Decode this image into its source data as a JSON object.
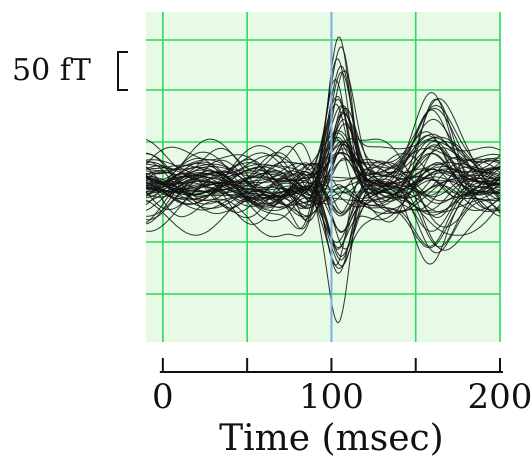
{
  "chart_data": {
    "type": "line",
    "title": "",
    "xlabel": "Time (msec)",
    "ylabel": "",
    "xlim": [
      -10,
      200
    ],
    "ylim": [
      -55,
      60
    ],
    "x_ticks": [
      0,
      50,
      100,
      150,
      200
    ],
    "x_tick_labels": [
      "0",
      "100",
      "200"
    ],
    "x_tick_label_values": [
      0,
      100,
      200
    ],
    "grid": true,
    "background_color": "#e6fae6",
    "grid_color": "#2fd85a",
    "trace_color": "#111111",
    "stimulus_marker_x": 100,
    "stimulus_marker_color": "#7fb0d8",
    "scale_bar": {
      "label": "50 fT",
      "value": 50,
      "unit": "fT"
    },
    "trace_count": 60,
    "envelope": {
      "note_x": [
        -10,
        0,
        50,
        80,
        95,
        105,
        120,
        135,
        150,
        165,
        180,
        200
      ],
      "max_peak": [
        22,
        20,
        12,
        15,
        40,
        58,
        30,
        20,
        35,
        30,
        15,
        18
      ],
      "min_trough": [
        -22,
        -20,
        -15,
        -25,
        -50,
        -40,
        -20,
        -25,
        -30,
        -35,
        -20,
        -15
      ]
    },
    "series_generation": {
      "components": [
        {
          "center": 105,
          "width": 9,
          "amp_range": [
            -55,
            58
          ]
        },
        {
          "center": 160,
          "width": 15,
          "amp_range": [
            -32,
            35
          ]
        }
      ],
      "noise_amplitude": 10
    }
  }
}
